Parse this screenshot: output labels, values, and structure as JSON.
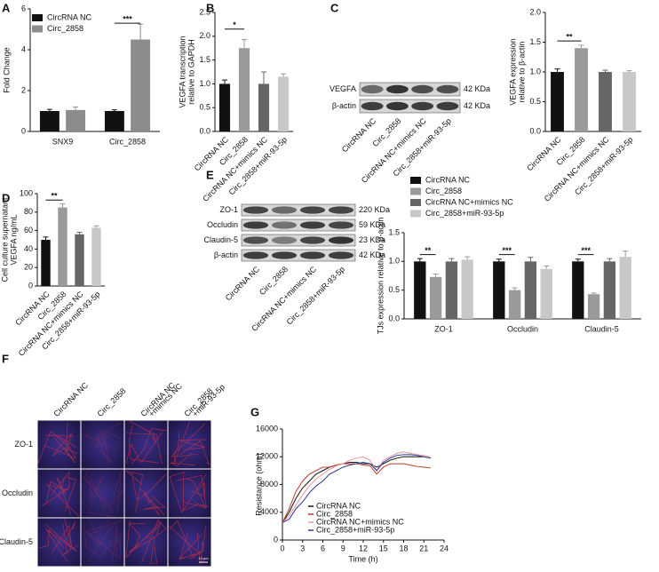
{
  "chart_data": [
    {
      "type": "bar",
      "panel": "A",
      "ylabel": [
        "Fold Change"
      ],
      "categories": [
        "SNX9",
        "Circ_2858"
      ],
      "series": [
        {
          "name": "CircRNA NC",
          "color": "#111111",
          "values": [
            1.0,
            1.0
          ],
          "errors": [
            0.08,
            0.06
          ]
        },
        {
          "name": "Circ_2858",
          "color": "#8c8c8c",
          "values": [
            1.05,
            4.5
          ],
          "errors": [
            0.15,
            0.75
          ]
        }
      ],
      "ylim": [
        0,
        6
      ],
      "yticks": [
        0,
        2,
        4,
        6
      ],
      "annotations": [
        "***"
      ],
      "legend": "upper left"
    },
    {
      "type": "bar",
      "panel": "B",
      "ylabel": [
        "VEGFA transcription",
        "relative to GAPDH"
      ],
      "categories": [
        "CircRNA NC",
        "Circ_2858",
        "CircRNA NC+mimics NC",
        "Circ_2858+miR-93-5p"
      ],
      "values": [
        1.0,
        1.75,
        1.0,
        1.15
      ],
      "errors": [
        0.08,
        0.18,
        0.25,
        0.06
      ],
      "colors": [
        "#111111",
        "#9a9a9a",
        "#666666",
        "#c8c8c8"
      ],
      "ylim": [
        0,
        2.5
      ],
      "yticks": [
        {
          "value": 0,
          "label": "0.0"
        },
        0.5,
        {
          "value": 1,
          "label": "1.0"
        },
        1.5,
        {
          "value": 2,
          "label": "2.0"
        },
        2.5
      ],
      "annotations": [
        "*"
      ]
    },
    {
      "type": "blot",
      "panel": "C",
      "rows": [
        {
          "label": "VEGFA",
          "size": "42 KDa"
        },
        {
          "label": "β-actin",
          "size": "42 KDa"
        }
      ],
      "categories": [
        "CircRNA NC",
        "Circ_2858",
        "CircRNA NC+mimics NC",
        "Circ_2858+miR-93-5p"
      ]
    },
    {
      "type": "bar",
      "ylabel": [
        "VEGFA expression",
        "relative to β-actin"
      ],
      "categories": [
        "CircRNA NC",
        "Circ_2858",
        "CircRNA NC+mimics NC",
        "Circ_2858+miR-93-5p"
      ],
      "values": [
        1.0,
        1.4,
        1.0,
        1.0
      ],
      "errors": [
        0.05,
        0.05,
        0.03,
        0.02
      ],
      "colors": [
        "#111111",
        "#9a9a9a",
        "#666666",
        "#c8c8c8"
      ],
      "ylim": [
        0,
        2
      ],
      "yticks": [
        {
          "value": 0,
          "label": "0.0"
        },
        0.5,
        {
          "value": 1,
          "label": "1.0"
        },
        1.5,
        {
          "value": 2,
          "label": "2.0"
        }
      ],
      "annotations": [
        "**"
      ]
    },
    {
      "type": "bar",
      "panel": "D",
      "ylabel": [
        "Cell culture supernatant",
        "VEGFA ng/mL"
      ],
      "categories": [
        "CircRNA NC",
        "Circ_2858",
        "CircRNA NC+mimics NC",
        "Circ_2858+miR-93-5p"
      ],
      "values": [
        50,
        85,
        56,
        63
      ],
      "errors": [
        3,
        4,
        2,
        2
      ],
      "colors": [
        "#111111",
        "#9a9a9a",
        "#666666",
        "#c8c8c8"
      ],
      "ylim": [
        0,
        100
      ],
      "yticks": [
        0,
        20,
        40,
        60,
        80,
        100
      ],
      "annotations": [
        "**"
      ]
    },
    {
      "type": "blot",
      "panel": "E",
      "rows": [
        {
          "label": "ZO-1",
          "size": "220 KDa"
        },
        {
          "label": "Occludin",
          "size": "59 KDa"
        },
        {
          "label": "Claudin-5",
          "size": "23 KDa"
        },
        {
          "label": "β-actin",
          "size": "42 KDa"
        }
      ],
      "categories": [
        "CircRNA NC",
        "Circ_2858",
        "CircRNA NC+mimics NC",
        "Circ_2858+miR-93-5p"
      ]
    },
    {
      "type": "bar",
      "ylabel": [
        "TJs expression relative to β-actin"
      ],
      "categories": [
        "ZO-1",
        "Occludin",
        "Claudin-5"
      ],
      "series": [
        {
          "name": "CircRNA NC",
          "color": "#111111",
          "values": [
            1.0,
            1.0,
            1.0
          ],
          "errors": [
            0.05,
            0.04,
            0.04
          ]
        },
        {
          "name": "Circ_2858",
          "color": "#9a9a9a",
          "values": [
            0.73,
            0.5,
            0.43
          ],
          "errors": [
            0.05,
            0.04,
            0.02
          ]
        },
        {
          "name": "CircRNA NC+mimics NC",
          "color": "#666666",
          "values": [
            1.0,
            1.0,
            1.0
          ],
          "errors": [
            0.05,
            0.07,
            0.05
          ]
        },
        {
          "name": "Circ_2858+miR-93-5p",
          "color": "#c8c8c8",
          "values": [
            1.03,
            0.87,
            1.08
          ],
          "errors": [
            0.05,
            0.05,
            0.1
          ]
        }
      ],
      "ylim": [
        0,
        1.5
      ],
      "yticks": [
        {
          "value": 0,
          "label": "0.0"
        },
        0.5,
        {
          "value": 1,
          "label": "1.0"
        },
        1.5
      ],
      "annotations": [
        "**",
        "***",
        "***"
      ],
      "legend": "top"
    },
    {
      "type": "image-grid",
      "panel": "F",
      "columns": [
        [
          "CircRNA NC"
        ],
        [
          "Circ_2858"
        ],
        [
          "CircRNA NC",
          "+mimics NC"
        ],
        [
          "Circ_2858",
          "+miR-93-5p"
        ]
      ],
      "rows": [
        "ZO-1",
        "Occludin",
        "Claudin-5"
      ],
      "scale_bar": "10 μm"
    },
    {
      "type": "line",
      "panel": "G",
      "ylabel": [
        "Resistance (ohm)"
      ],
      "xlabel": "Time (h)",
      "x": [
        0,
        1,
        2,
        3,
        4,
        5,
        6,
        7,
        8,
        9,
        10,
        11,
        12,
        13,
        14,
        15,
        16,
        17,
        18,
        19,
        20,
        21,
        22
      ],
      "series": [
        {
          "name": "CircRNA NC",
          "color": "#111111",
          "values": [
            2500,
            4000,
            6000,
            7500,
            8500,
            9500,
            10000,
            10500,
            10800,
            11000,
            11200,
            11200,
            11000,
            11000,
            10500,
            11000,
            11500,
            11800,
            12000,
            12000,
            12000,
            12000,
            11800
          ]
        },
        {
          "name": "Circ_2858",
          "color": "#c0392b",
          "values": [
            2500,
            4500,
            7000,
            8500,
            9500,
            10000,
            10500,
            10500,
            10800,
            11000,
            11000,
            11000,
            10800,
            10700,
            9500,
            10500,
            11000,
            11000,
            11000,
            10800,
            10600,
            10500,
            10400
          ]
        },
        {
          "name": "CircRNA NC+mimics NC",
          "color": "#e09a9a",
          "values": [
            2500,
            3500,
            5000,
            6500,
            7800,
            8800,
            9500,
            10200,
            10700,
            11000,
            11500,
            11800,
            12000,
            11500,
            10000,
            11500,
            12000,
            12500,
            12700,
            12500,
            12300,
            12200,
            12000
          ]
        },
        {
          "name": "Circ_2858+miR-93-5p",
          "color": "#2c3a8f",
          "values": [
            2500,
            3000,
            4500,
            5500,
            6800,
            7800,
            8500,
            9500,
            10000,
            10500,
            10800,
            11000,
            11200,
            11000,
            10000,
            11200,
            11800,
            12200,
            12300,
            12300,
            12200,
            12000,
            11800
          ]
        }
      ],
      "xlim": [
        0,
        24
      ],
      "xticks": [
        0,
        3,
        6,
        9,
        12,
        15,
        18,
        21,
        24
      ],
      "ylim": [
        0,
        16000
      ],
      "yticks": [
        0,
        4000,
        8000,
        12000,
        16000
      ]
    }
  ]
}
